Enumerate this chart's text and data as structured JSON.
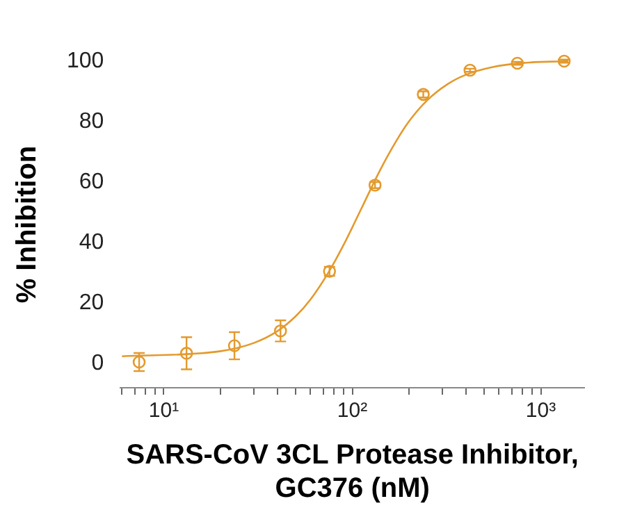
{
  "chart_data": {
    "type": "scatter",
    "xlabel": "SARS-CoV 3CL Protease Inhibitor,\nGC376 (nM)",
    "ylabel": "% Inhibition",
    "log": "x",
    "grid": false,
    "legend": false,
    "marker": "circle",
    "xlim": [
      5.9,
      1700
    ],
    "ylim": [
      -8,
      100
    ],
    "xticks": [
      {
        "value": 6,
        "label": null
      },
      {
        "value": 7,
        "label": null
      },
      {
        "value": 8,
        "label": null
      },
      {
        "value": 9,
        "label": null
      },
      {
        "value": 10,
        "label": "10¹"
      },
      {
        "value": 20,
        "label": null
      },
      {
        "value": 30,
        "label": null
      },
      {
        "value": 40,
        "label": null
      },
      {
        "value": 50,
        "label": null
      },
      {
        "value": 60,
        "label": null
      },
      {
        "value": 70,
        "label": null
      },
      {
        "value": 80,
        "label": null
      },
      {
        "value": 90,
        "label": null
      },
      {
        "value": 100,
        "label": "10²"
      },
      {
        "value": 200,
        "label": null
      },
      {
        "value": 300,
        "label": null
      },
      {
        "value": 400,
        "label": null
      },
      {
        "value": 500,
        "label": null
      },
      {
        "value": 600,
        "label": null
      },
      {
        "value": 700,
        "label": null
      },
      {
        "value": 800,
        "label": null
      },
      {
        "value": 900,
        "label": null
      },
      {
        "value": 1000,
        "label": "10³"
      }
    ],
    "yticks": [
      0,
      20,
      40,
      60,
      80,
      100
    ],
    "series": [
      {
        "color": "#e39a2e",
        "x": [
          7.4,
          13.2,
          23.7,
          41.6,
          75.7,
          132,
          238,
          421,
          751,
          1330
        ],
        "values": [
          0.5,
          3.4,
          5.9,
          10.8,
          30.5,
          59,
          89,
          97,
          99.3,
          100
        ],
        "errors": [
          3,
          5.3,
          4.5,
          3.5,
          1.5,
          1,
          1,
          0.5,
          0.5,
          0.5
        ]
      },
      {
        "type": "line",
        "color": "#e39a2e",
        "marker": "none",
        "x": [
          6,
          20,
          30,
          40,
          50,
          60,
          75,
          90,
          112,
          140,
          170,
          200,
          250,
          320,
          400,
          550,
          800,
          1400
        ],
        "values": [
          2.4,
          4.1,
          6.8,
          10.7,
          15.6,
          21.2,
          30.3,
          39.3,
          51.4,
          63.8,
          73.3,
          80.1,
          87.1,
          92.4,
          95.5,
          98,
          99.4,
          100
        ]
      }
    ]
  }
}
